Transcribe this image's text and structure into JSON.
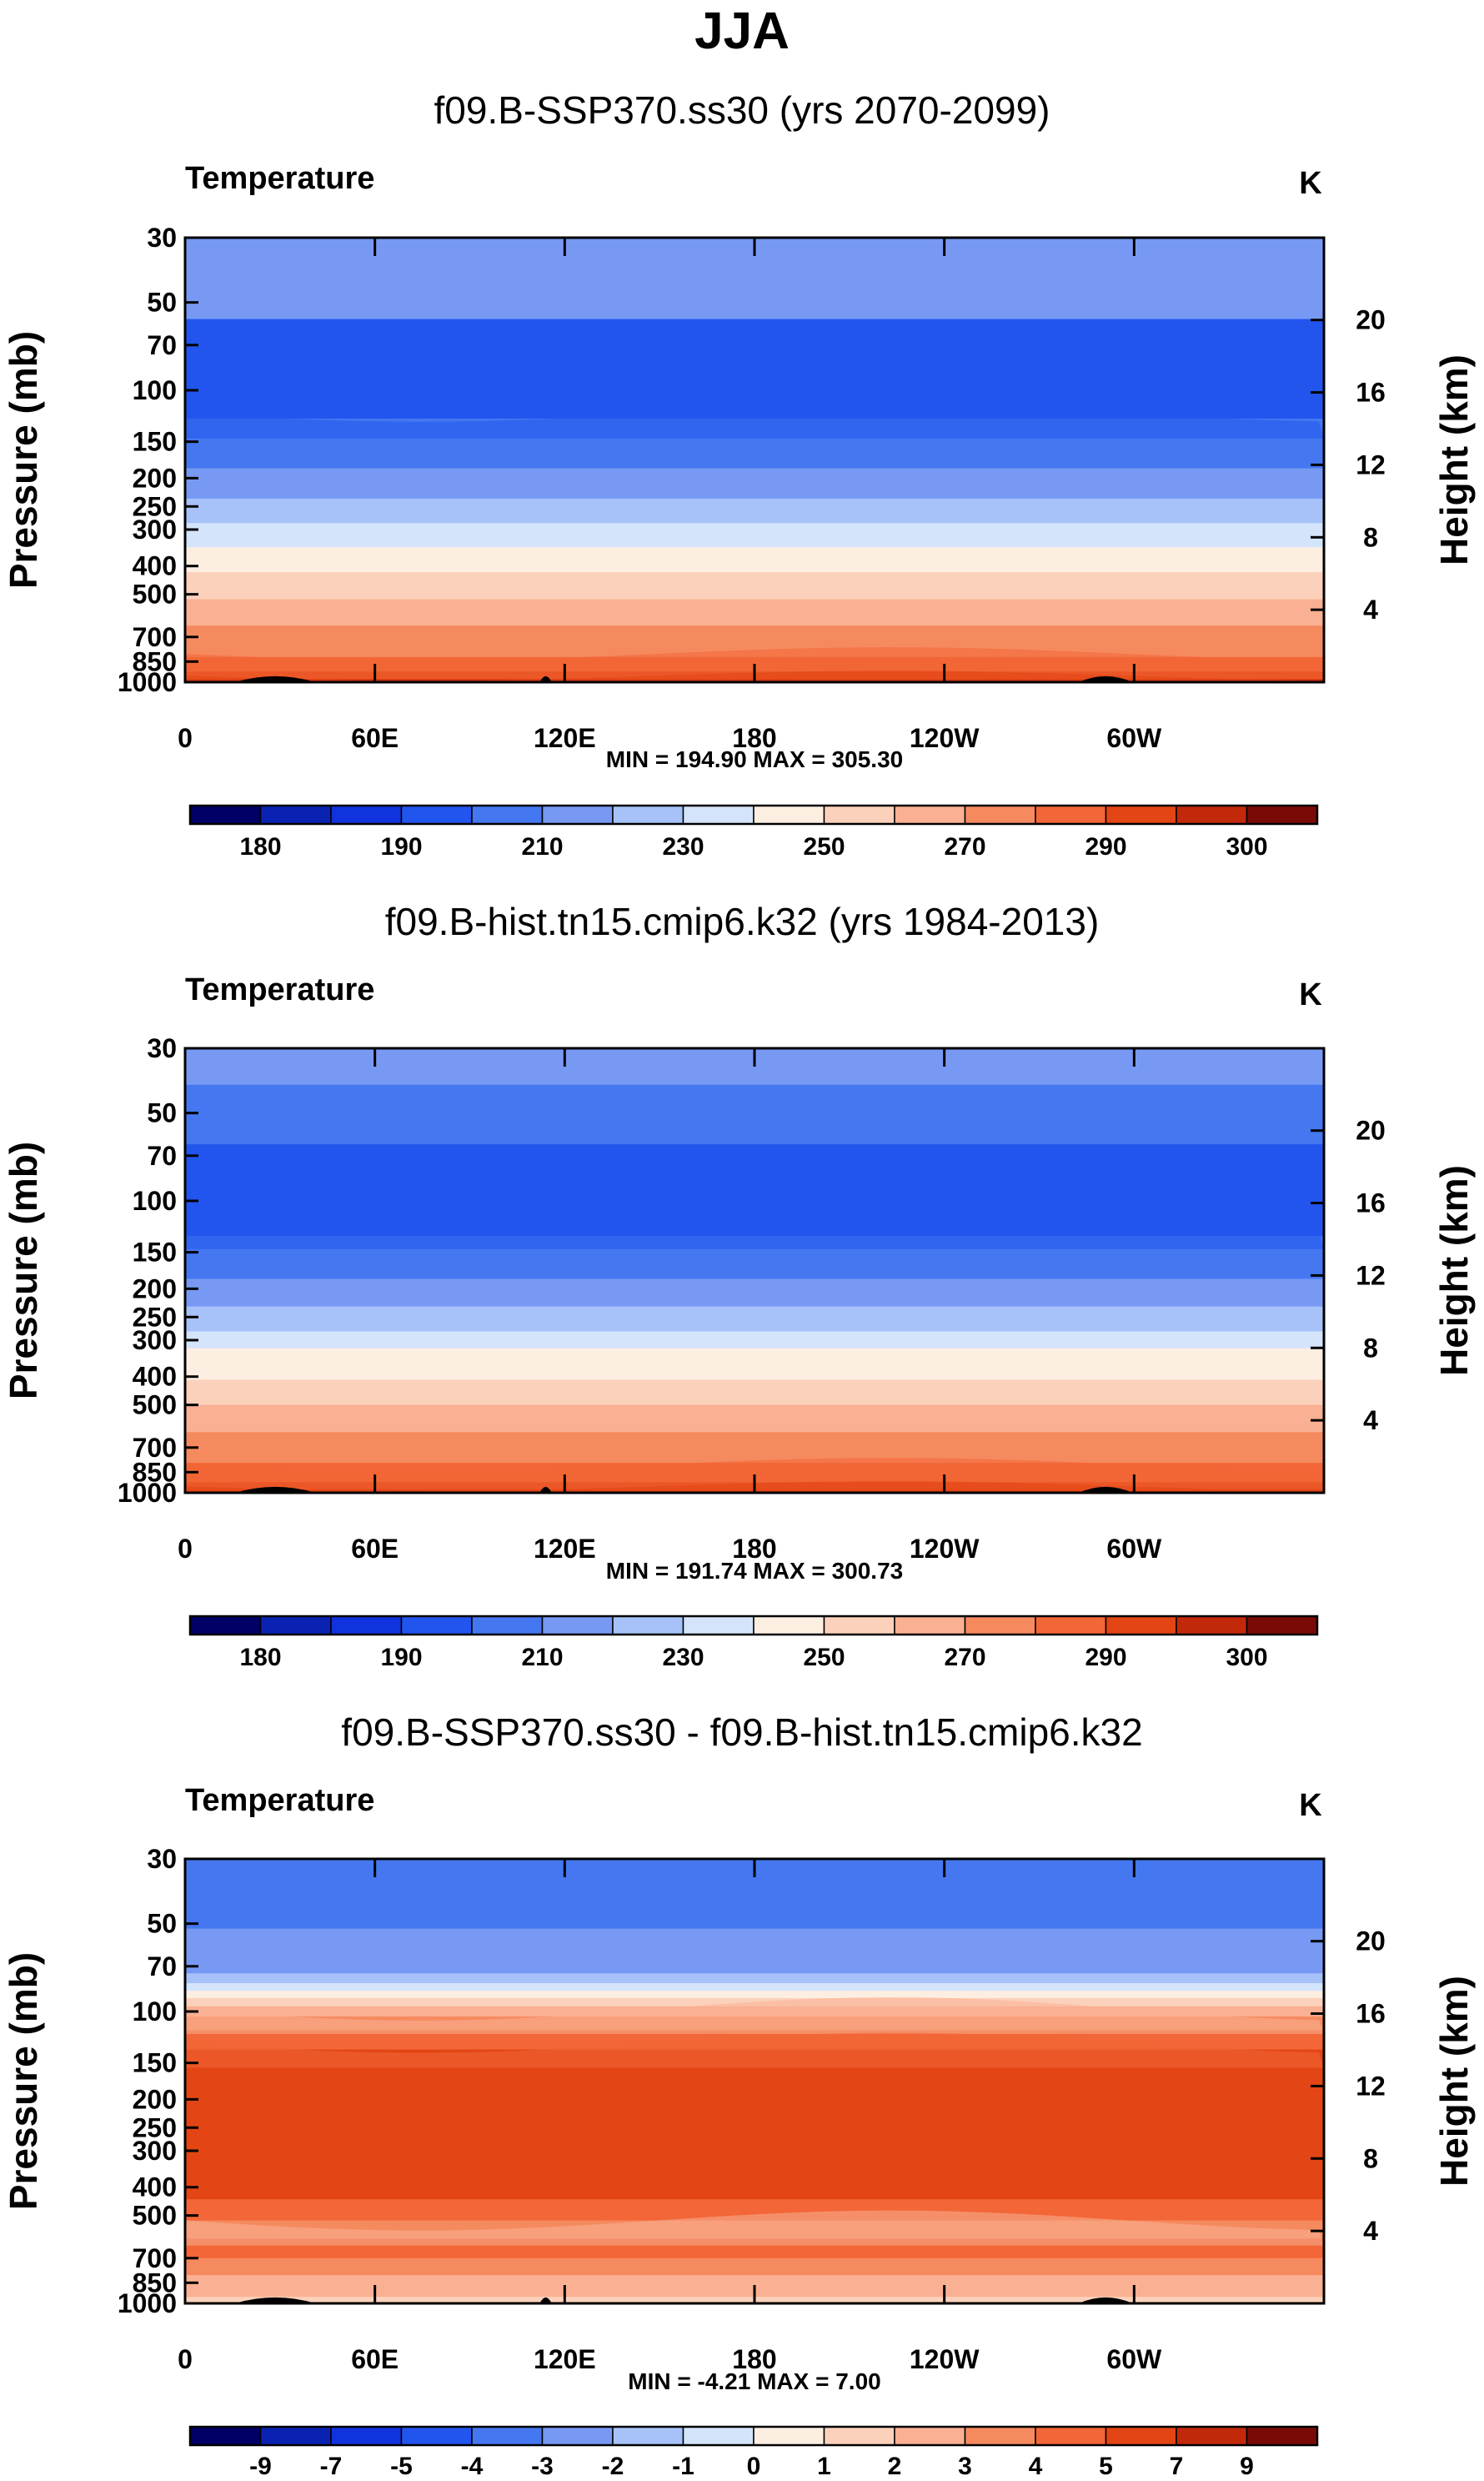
{
  "title": "JJA",
  "colors": {
    "abs": [
      "#000066",
      "#0a22b2",
      "#1133dd",
      "#2255ee",
      "#4477f0",
      "#7799f4",
      "#a6c2f8",
      "#d4e4fb",
      "#fdeee2",
      "#fcd1bb",
      "#fab093",
      "#f68a5f",
      "#f26637",
      "#e34514",
      "#c2290b",
      "#7a0a05"
    ],
    "diff": [
      "#000066",
      "#0a22b2",
      "#1133dd",
      "#2255ee",
      "#4477f0",
      "#7799f4",
      "#a6c2f8",
      "#d4e4fb",
      "#fdeee2",
      "#fcd1bb",
      "#fab093",
      "#f68a5f",
      "#f26637",
      "#e34514",
      "#c2290b",
      "#7a0a05"
    ],
    "topography": "#000000"
  },
  "chart_data": [
    {
      "type": "heatmap",
      "subtitle": "f09.B-SSP370.ss30 (yrs 2070-2099)",
      "left_label": "Temperature",
      "right_label": "K",
      "ylabel": "Pressure (mb)",
      "ylabel_right": "Height (km)",
      "x_ticks": [
        "0",
        "60E",
        "120E",
        "180",
        "120W",
        "60W"
      ],
      "x_tick_values": [
        0,
        60,
        120,
        180,
        240,
        300
      ],
      "xlim": [
        0,
        360
      ],
      "y_ticks": [
        "30",
        "50",
        "70",
        "100",
        "150",
        "200",
        "250",
        "300",
        "400",
        "500",
        "700",
        "850",
        "1000"
      ],
      "y_tick_values": [
        30,
        50,
        70,
        100,
        150,
        200,
        250,
        300,
        400,
        500,
        700,
        850,
        1000
      ],
      "ylim": [
        30,
        1000
      ],
      "height_ticks": [
        "4",
        "8",
        "12",
        "16",
        "20"
      ],
      "height_tick_values": [
        4,
        8,
        12,
        16,
        20
      ],
      "min_max_label": "MIN = 194.90   MAX = 305.30",
      "colorbar_labels": [
        "180",
        "190",
        "210",
        "230",
        "250",
        "270",
        "290",
        "300"
      ],
      "colorbar_levels": 16,
      "band_levels": [
        [
          30,
          5
        ],
        [
          57,
          3
        ],
        [
          125,
          4
        ],
        [
          185,
          5
        ],
        [
          235,
          6
        ],
        [
          285,
          7
        ],
        [
          345,
          8
        ],
        [
          420,
          9
        ],
        [
          520,
          10
        ],
        [
          640,
          11
        ],
        [
          820,
          12
        ],
        [
          920,
          13
        ],
        [
          980,
          14
        ]
      ]
    },
    {
      "type": "heatmap",
      "subtitle": "f09.B-hist.tn15.cmip6.k32 (yrs 1984-2013)",
      "left_label": "Temperature",
      "right_label": "K",
      "ylabel": "Pressure (mb)",
      "ylabel_right": "Height (km)",
      "x_ticks": [
        "0",
        "60E",
        "120E",
        "180",
        "120W",
        "60W"
      ],
      "x_tick_values": [
        0,
        60,
        120,
        180,
        240,
        300
      ],
      "xlim": [
        0,
        360
      ],
      "y_ticks": [
        "30",
        "50",
        "70",
        "100",
        "150",
        "200",
        "250",
        "300",
        "400",
        "500",
        "700",
        "850",
        "1000"
      ],
      "y_tick_values": [
        30,
        50,
        70,
        100,
        150,
        200,
        250,
        300,
        400,
        500,
        700,
        850,
        1000
      ],
      "ylim": [
        30,
        1000
      ],
      "height_ticks": [
        "4",
        "8",
        "12",
        "16",
        "20"
      ],
      "height_tick_values": [
        4,
        8,
        12,
        16,
        20
      ],
      "min_max_label": "MIN = 191.74   MAX = 300.73",
      "colorbar_labels": [
        "180",
        "190",
        "210",
        "230",
        "250",
        "270",
        "290",
        "300"
      ],
      "colorbar_levels": 16,
      "band_levels": [
        [
          30,
          5
        ],
        [
          40,
          4
        ],
        [
          64,
          3
        ],
        [
          132,
          4
        ],
        [
          185,
          5
        ],
        [
          230,
          6
        ],
        [
          280,
          7
        ],
        [
          320,
          8
        ],
        [
          410,
          9
        ],
        [
          500,
          10
        ],
        [
          620,
          11
        ],
        [
          790,
          12
        ],
        [
          920,
          13
        ]
      ]
    },
    {
      "type": "heatmap",
      "subtitle": "f09.B-SSP370.ss30 - f09.B-hist.tn15.cmip6.k32",
      "left_label": "Temperature",
      "right_label": "K",
      "ylabel": "Pressure (mb)",
      "ylabel_right": "Height (km)",
      "x_ticks": [
        "0",
        "60E",
        "120E",
        "180",
        "120W",
        "60W"
      ],
      "x_tick_values": [
        0,
        60,
        120,
        180,
        240,
        300
      ],
      "xlim": [
        0,
        360
      ],
      "y_ticks": [
        "30",
        "50",
        "70",
        "100",
        "150",
        "200",
        "250",
        "300",
        "400",
        "500",
        "700",
        "850",
        "1000"
      ],
      "y_tick_values": [
        30,
        50,
        70,
        100,
        150,
        200,
        250,
        300,
        400,
        500,
        700,
        850,
        1000
      ],
      "ylim": [
        30,
        1000
      ],
      "height_ticks": [
        "4",
        "8",
        "12",
        "16",
        "20"
      ],
      "height_tick_values": [
        4,
        8,
        12,
        16,
        20
      ],
      "min_max_label": "MIN =  -4.21   MAX =   7.00",
      "colorbar_labels": [
        "-9",
        "-7",
        "-5",
        "-4",
        "-3",
        "-2",
        "-1",
        "0",
        "1",
        "2",
        "3",
        "4",
        "5",
        "7",
        "9"
      ],
      "colorbar_levels": 16,
      "band_levels": [
        [
          30,
          4
        ],
        [
          52,
          5
        ],
        [
          74,
          6
        ],
        [
          80,
          7
        ],
        [
          85,
          8
        ],
        [
          90,
          9
        ],
        [
          96,
          10
        ],
        [
          104,
          11
        ],
        [
          116,
          12
        ],
        [
          135,
          13
        ],
        [
          440,
          12
        ],
        [
          520,
          11
        ],
        [
          600,
          12
        ],
        [
          700,
          11
        ],
        [
          800,
          10
        ],
        [
          950,
          9
        ]
      ]
    }
  ]
}
